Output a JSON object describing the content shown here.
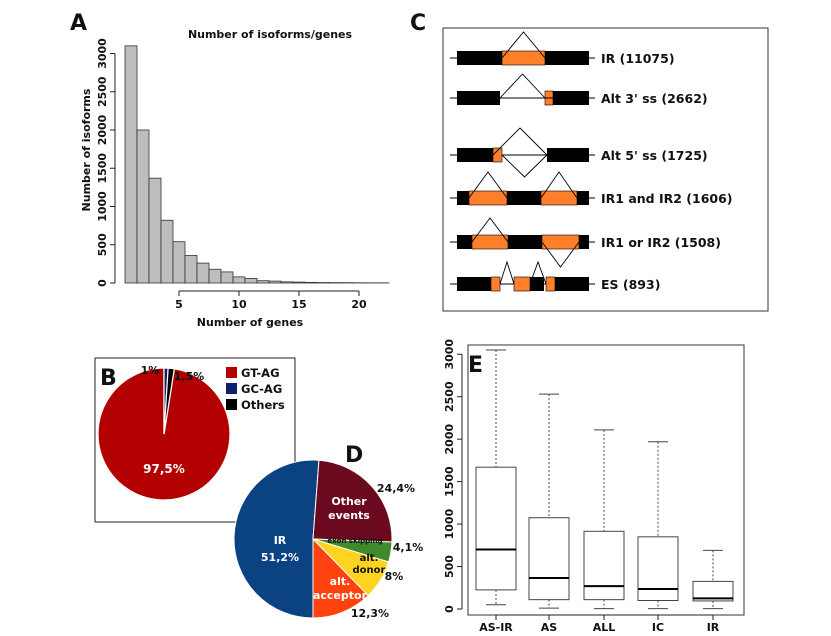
{
  "figure": {
    "panel_labels": {
      "a": "A",
      "b": "B",
      "c": "C",
      "d": "D",
      "e": "E"
    }
  },
  "chart_data": [
    {
      "panel": "A",
      "type": "bar",
      "title": "Number of isoforms/genes",
      "xlabel": "Number of genes",
      "ylabel": "Number of isoforms",
      "categories": [
        1,
        2,
        3,
        4,
        5,
        6,
        7,
        8,
        9,
        10,
        11,
        12,
        13,
        14,
        15,
        16,
        17,
        18,
        19,
        20,
        21,
        22
      ],
      "values": [
        3100,
        2000,
        1370,
        820,
        540,
        360,
        260,
        180,
        145,
        80,
        60,
        30,
        25,
        15,
        12,
        8,
        6,
        5,
        4,
        3,
        2,
        2
      ],
      "xticks": [
        5,
        10,
        15,
        20
      ],
      "yticks": [
        0,
        500,
        1000,
        1500,
        2000,
        2500,
        3000
      ],
      "xlim": [
        0.5,
        23
      ],
      "ylim": [
        0,
        3150
      ],
      "color": "#bdbdbd"
    },
    {
      "panel": "B",
      "type": "pie",
      "labels": [
        "GT-AG",
        "GC-AG",
        "Others"
      ],
      "values": [
        97.5,
        1,
        1.5
      ],
      "value_labels": [
        "97,5%",
        "1%",
        "1,5%"
      ],
      "colors": [
        "#b30000",
        "#0f1f6e",
        "#000000"
      ],
      "legend": [
        "GT-AG",
        "GC-AG",
        "Others"
      ]
    },
    {
      "panel": "D",
      "type": "pie",
      "segments": [
        {
          "label": "IR",
          "value": 51.2,
          "value_label": "51,2%",
          "color": "#0b4282"
        },
        {
          "label": "Other events",
          "value": 24.4,
          "value_label": "24,4%",
          "color": "#6b0a1e"
        },
        {
          "label": "exon skipping",
          "value": 4.1,
          "value_label": "4,1%",
          "color": "#3f8a2b"
        },
        {
          "label": "alt. donor",
          "value": 8,
          "value_label": "8%",
          "color": "#ffd320"
        },
        {
          "label": "alt. acceptor",
          "value": 12.3,
          "value_label": "12,3%",
          "color": "#ff420e"
        }
      ]
    },
    {
      "panel": "E",
      "type": "box",
      "categories": [
        "AS-IR",
        "AS",
        "ALL",
        "IC",
        "IR"
      ],
      "boxes": [
        {
          "name": "AS-IR",
          "min": 50,
          "q1": 225,
          "median": 700,
          "q3": 1670,
          "max": 3050
        },
        {
          "name": "AS",
          "min": 10,
          "q1": 110,
          "median": 365,
          "q3": 1075,
          "max": 2530
        },
        {
          "name": "ALL",
          "min": 5,
          "q1": 110,
          "median": 270,
          "q3": 915,
          "max": 2110
        },
        {
          "name": "IC",
          "min": 5,
          "q1": 100,
          "median": 235,
          "q3": 850,
          "max": 1970
        },
        {
          "name": "IR",
          "min": 5,
          "q1": 95,
          "median": 125,
          "q3": 325,
          "max": 690
        }
      ],
      "yticks": [
        0,
        500,
        1000,
        1500,
        2000,
        2500,
        3000
      ],
      "ylim": [
        0,
        3050
      ]
    }
  ],
  "events": {
    "items": [
      {
        "label": "IR (11075)"
      },
      {
        "label": "Alt 3' ss (2662)"
      },
      {
        "label": "Alt 5' ss (1725)"
      },
      {
        "label": "IR1 and IR2 (1606)"
      },
      {
        "label": "IR1 or IR2 (1508)"
      },
      {
        "label": "ES (893)"
      }
    ],
    "colors": {
      "exon": "#000000",
      "intron": "#ff7f2a"
    }
  }
}
